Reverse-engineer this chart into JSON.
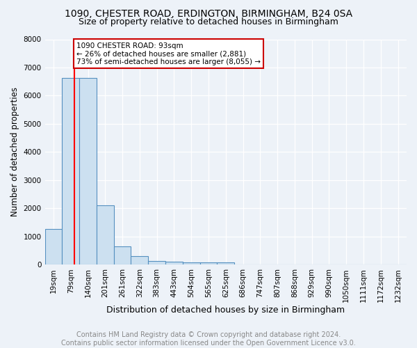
{
  "title": "1090, CHESTER ROAD, ERDINGTON, BIRMINGHAM, B24 0SA",
  "subtitle": "Size of property relative to detached houses in Birmingham",
  "xlabel": "Distribution of detached houses by size in Birmingham",
  "ylabel": "Number of detached properties",
  "footer_line1": "Contains HM Land Registry data © Crown copyright and database right 2024.",
  "footer_line2": "Contains public sector information licensed under the Open Government Licence v3.0.",
  "bar_labels": [
    "19sqm",
    "79sqm",
    "140sqm",
    "201sqm",
    "261sqm",
    "322sqm",
    "383sqm",
    "443sqm",
    "504sqm",
    "565sqm",
    "625sqm",
    "686sqm",
    "747sqm",
    "807sqm",
    "868sqm",
    "929sqm",
    "990sqm",
    "1050sqm",
    "1111sqm",
    "1172sqm",
    "1232sqm"
  ],
  "bar_values": [
    1280,
    6620,
    6620,
    2100,
    640,
    295,
    140,
    105,
    85,
    85,
    85,
    0,
    0,
    0,
    0,
    0,
    0,
    0,
    0,
    0,
    0
  ],
  "bar_color": "#cce0f0",
  "bar_edge_color": "#5590c0",
  "red_line_x": 1.23,
  "annotation_text": "1090 CHESTER ROAD: 93sqm\n← 26% of detached houses are smaller (2,881)\n73% of semi-detached houses are larger (8,055) →",
  "annotation_box_facecolor": "#ffffff",
  "annotation_box_edgecolor": "#cc0000",
  "ylim": [
    0,
    8000
  ],
  "yticks": [
    0,
    1000,
    2000,
    3000,
    4000,
    5000,
    6000,
    7000,
    8000
  ],
  "background_color": "#edf2f8",
  "grid_color": "#ffffff",
  "title_fontsize": 10,
  "subtitle_fontsize": 9,
  "ylabel_fontsize": 8.5,
  "xlabel_fontsize": 9,
  "tick_fontsize": 7.5,
  "annotation_fontsize": 7.5,
  "footer_fontsize": 7
}
